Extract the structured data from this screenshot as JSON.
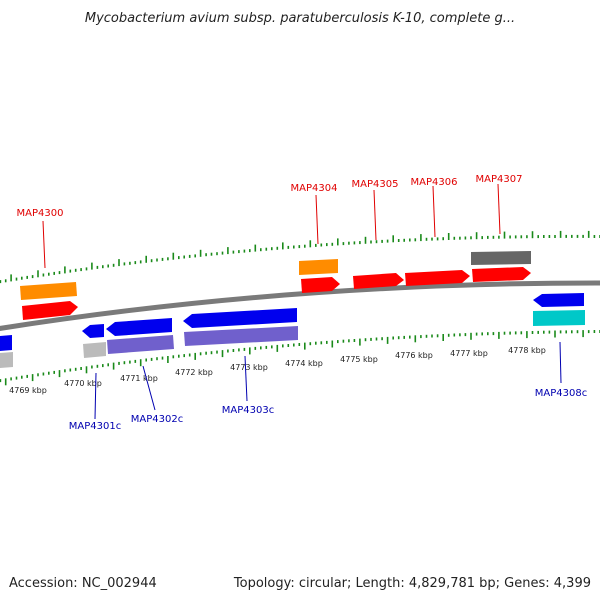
{
  "header": {
    "title": "Mycobacterium avium subsp. paratuberculosis K-10, complete g..."
  },
  "footer": {
    "accession": "Accession: NC_002944",
    "topology": "Topology: circular; Length: 4,829,781 bp; Genes: 4,399"
  },
  "colors": {
    "background": "#ffffff",
    "backbone": "#808080",
    "ticks": "#1a8a1a",
    "forward_label": "#e00000",
    "reverse_label": "#0000b0",
    "cds_forward": "#ff0000",
    "cds_reverse": "#0000ee",
    "gene_orange": "#ff8c00",
    "gene_gray": "#666666",
    "gene_lavender": "#7060cc",
    "gene_light_gray": "#bbbbbb",
    "gene_cyan": "#00c8c8"
  },
  "scale": {
    "ticks": [
      {
        "label": "4769 kbp"
      },
      {
        "label": "4770 kbp"
      },
      {
        "label": "4771 kbp"
      },
      {
        "label": "4772 kbp"
      },
      {
        "label": "4773 kbp"
      },
      {
        "label": "4774 kbp"
      },
      {
        "label": "4775 kbp"
      },
      {
        "label": "4776 kbp"
      },
      {
        "label": "4777 kbp"
      },
      {
        "label": "4778 kbp"
      }
    ]
  },
  "features": {
    "forward_labels": [
      "MAP4300",
      "MAP4304",
      "MAP4305",
      "MAP4306",
      "MAP4307"
    ],
    "reverse_labels": [
      "MAP4301c",
      "MAP4302c",
      "MAP4303c",
      "MAP4308c"
    ]
  }
}
